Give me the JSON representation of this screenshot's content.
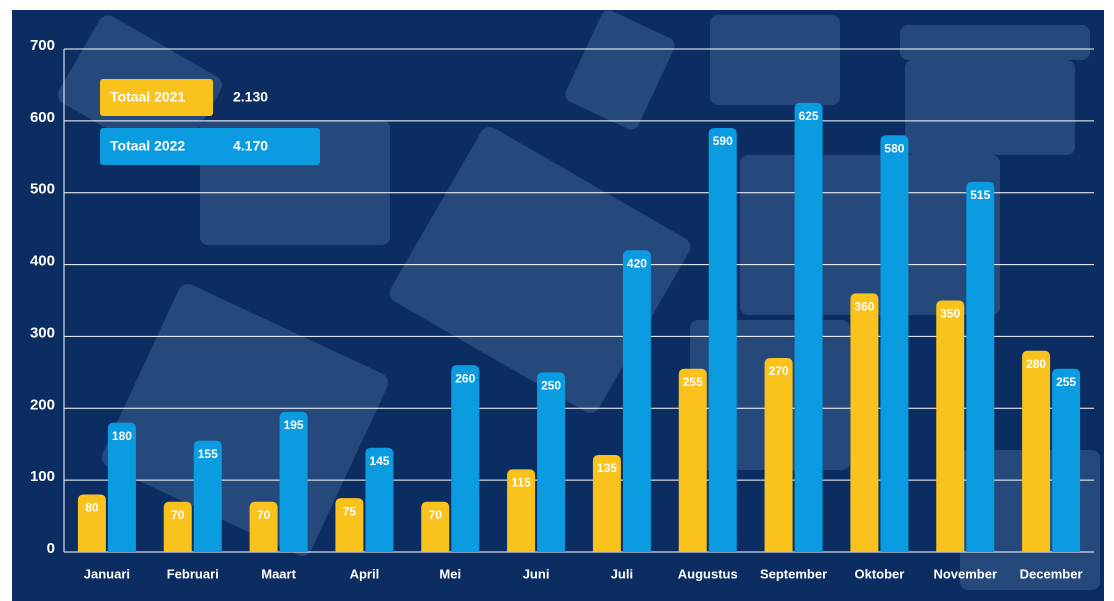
{
  "chart_data": {
    "type": "bar",
    "categories": [
      "Januari",
      "Februari",
      "Maart",
      "April",
      "Mei",
      "Juni",
      "Juli",
      "Augustus",
      "September",
      "Oktober",
      "November",
      "December"
    ],
    "series": [
      {
        "name": "Totaal 2021",
        "total": "2.130",
        "color": "#f9c21c",
        "label_color": "#1a1a1a",
        "values": [
          80,
          70,
          70,
          75,
          70,
          115,
          135,
          255,
          270,
          360,
          350,
          280
        ]
      },
      {
        "name": "Totaal 2022",
        "total": "4.170",
        "color": "#0a9be0",
        "label_color": "#ffffff",
        "values": [
          180,
          155,
          195,
          145,
          260,
          250,
          420,
          590,
          625,
          580,
          515,
          255
        ]
      }
    ],
    "ylim": [
      0,
      700
    ],
    "yticks": [
      0,
      100,
      200,
      300,
      400,
      500,
      600,
      700
    ],
    "grid": true
  }
}
